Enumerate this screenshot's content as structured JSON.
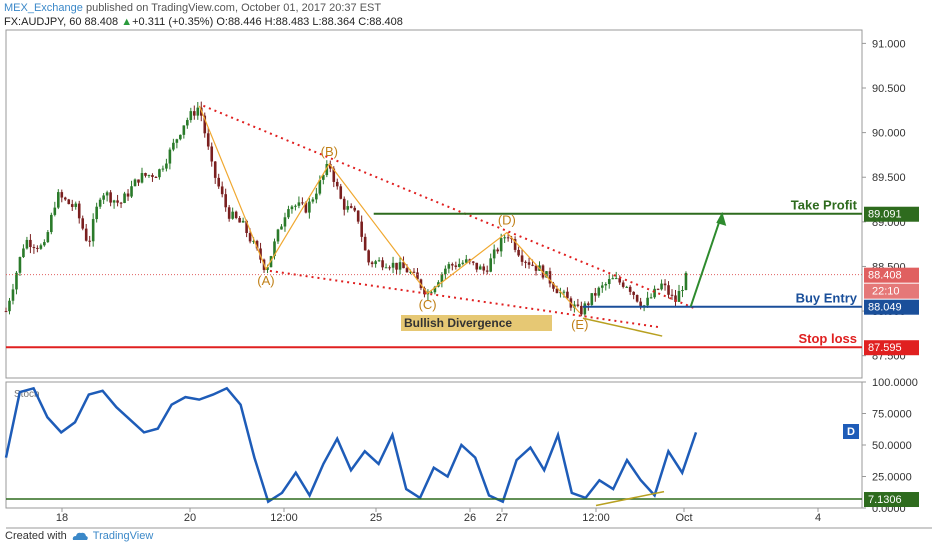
{
  "header": {
    "user": "MEX_Exchange",
    "published": "published on TradingView.com, October 01, 2017 20:37 EST",
    "symbol": "FX:AUDJPY, 60",
    "last": "88.408",
    "change_arrow": "▲",
    "change": "+0.311 (+0.35%)",
    "open": "O:88.446",
    "high": "H:88.483",
    "low": "L:88.364",
    "close": "C:88.408"
  },
  "footer": {
    "created": "Created with",
    "brand": "TradingView",
    "logo_icon": "tradingview-cloud-icon"
  },
  "chart_data": [
    {
      "type": "candlestick",
      "ylim": [
        87.25,
        91.15
      ],
      "y_ticks": [
        "91.000",
        "90.500",
        "90.000",
        "89.500",
        "89.000",
        "88.500",
        "88.000",
        "87.500"
      ],
      "x_ticks": [
        "18",
        "20",
        "12:00",
        "25",
        "26",
        "27",
        "12:00",
        "Oct",
        "4"
      ],
      "levels": [
        {
          "label": "Take Profit",
          "value": 89.091,
          "badge": "89.091",
          "color": "#2e6b1e"
        },
        {
          "label": "Buy Entry",
          "value": 88.049,
          "badge": "88.049",
          "color": "#1a4f9a"
        },
        {
          "label": "Stop loss",
          "value": 87.595,
          "badge": "87.595",
          "color": "#e02020"
        }
      ],
      "last_price": {
        "value": 88.408,
        "badge": "88.408",
        "timer": "22:10",
        "color": "#e06060"
      },
      "waves": [
        {
          "label": "(A)",
          "value": 88.47
        },
        {
          "label": "(B)",
          "value": 89.65
        },
        {
          "label": "(C)",
          "value": 88.2
        },
        {
          "label": "(D)",
          "value": 88.88
        },
        {
          "label": "(E)",
          "value": 87.98
        }
      ],
      "annotations": [
        "Bullish Divergence"
      ],
      "price_path": [
        [
          0,
          88.0
        ],
        [
          0.6,
          88.8
        ],
        [
          1.2,
          88.7
        ],
        [
          1.6,
          89.3
        ],
        [
          2.2,
          89.15
        ],
        [
          2.6,
          88.75
        ],
        [
          3.0,
          89.35
        ],
        [
          3.6,
          89.2
        ],
        [
          4.2,
          89.5
        ],
        [
          4.8,
          89.55
        ],
        [
          5.2,
          89.8
        ],
        [
          5.6,
          90.1
        ],
        [
          6.1,
          90.3
        ],
        [
          6.5,
          89.6
        ],
        [
          7.0,
          89.1
        ],
        [
          7.5,
          88.95
        ],
        [
          8.2,
          88.47
        ],
        [
          8.9,
          89.2
        ],
        [
          9.5,
          89.15
        ],
        [
          10.2,
          89.65
        ],
        [
          10.6,
          89.2
        ],
        [
          11.1,
          89.05
        ],
        [
          11.4,
          88.55
        ],
        [
          12.0,
          88.55
        ],
        [
          12.7,
          88.45
        ],
        [
          13.3,
          88.2
        ],
        [
          13.9,
          88.5
        ],
        [
          14.5,
          88.55
        ],
        [
          15.1,
          88.45
        ],
        [
          15.8,
          88.88
        ],
        [
          16.3,
          88.6
        ],
        [
          16.9,
          88.45
        ],
        [
          17.5,
          88.2
        ],
        [
          18.1,
          87.98
        ],
        [
          18.6,
          88.2
        ],
        [
          19.1,
          88.35
        ],
        [
          19.6,
          88.3
        ],
        [
          20.1,
          88.05
        ],
        [
          20.7,
          88.3
        ],
        [
          21.1,
          88.1
        ],
        [
          21.5,
          88.408
        ]
      ]
    },
    {
      "type": "line",
      "series_label": "Stoch",
      "badge": "D",
      "ylim": [
        0,
        100
      ],
      "y_ticks": [
        "100.0000",
        "75.0000",
        "50.0000",
        "25.0000",
        "0.0000"
      ],
      "level": {
        "value": 7.1306,
        "badge": "7.1306"
      },
      "values": [
        40,
        92,
        95,
        72,
        60,
        68,
        90,
        93,
        80,
        70,
        60,
        63,
        82,
        88,
        86,
        90,
        95,
        82,
        40,
        5,
        12,
        28,
        10,
        35,
        55,
        30,
        45,
        35,
        58,
        15,
        8,
        32,
        25,
        50,
        40,
        10,
        5,
        38,
        48,
        30,
        58,
        12,
        8,
        22,
        15,
        38,
        22,
        10,
        45,
        28,
        60
      ]
    }
  ]
}
